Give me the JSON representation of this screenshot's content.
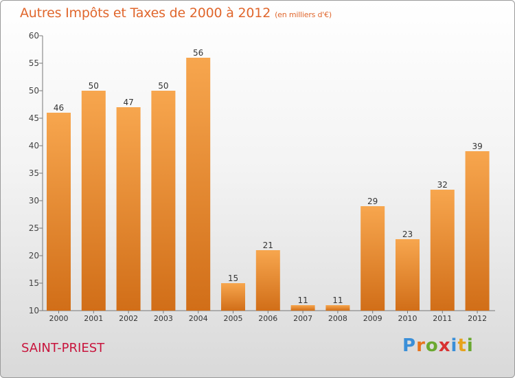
{
  "header": {
    "title": "Autres Impôts et Taxes de 2000 à 2012",
    "subtitle": "(en milliers d'€)"
  },
  "footer": {
    "place": "SAINT-PRIEST",
    "logo": "Proxiti"
  },
  "colors": {
    "bar_light": "#f7a64e",
    "bar_dark": "#d16e18",
    "title": "#e0662c",
    "place": "#c8143c"
  },
  "chart_data": {
    "type": "bar",
    "categories": [
      "2000",
      "2001",
      "2002",
      "2003",
      "2004",
      "2005",
      "2006",
      "2007",
      "2008",
      "2009",
      "2010",
      "2011",
      "2012"
    ],
    "values": [
      46,
      50,
      47,
      50,
      56,
      15,
      21,
      11,
      11,
      29,
      23,
      32,
      39
    ],
    "ylim": [
      10,
      60
    ],
    "yticks": [
      10,
      15,
      20,
      25,
      30,
      35,
      40,
      45,
      50,
      55,
      60
    ],
    "grid": false,
    "legend": "none"
  }
}
